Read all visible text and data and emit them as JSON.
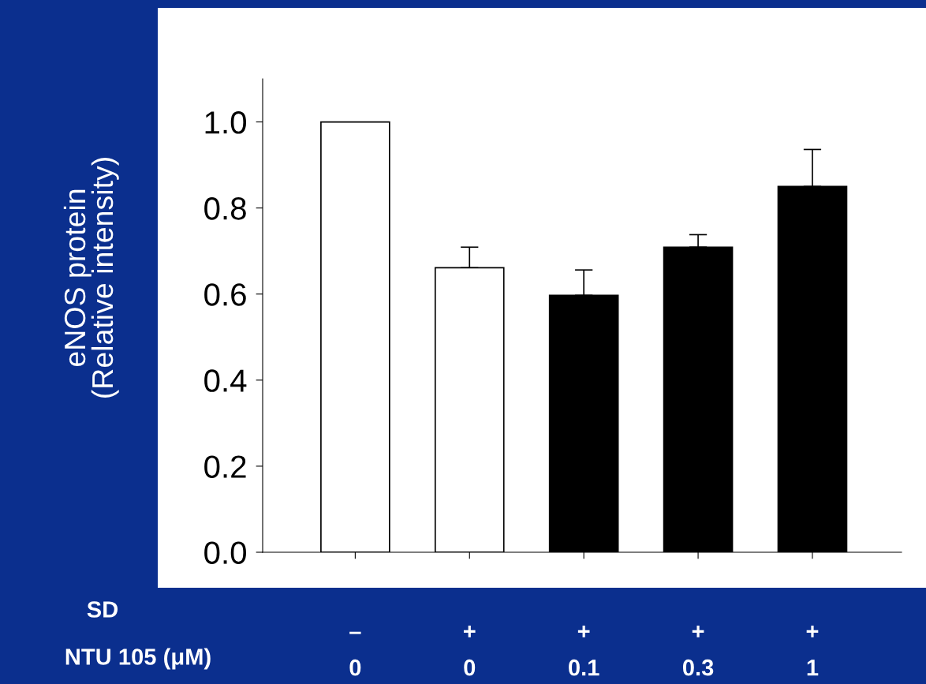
{
  "chart_data": {
    "type": "bar",
    "ylabel": "eNOS protein\n(Relative intensity)",
    "categories": [
      "–\n0",
      "+\n0",
      "+\n0.1",
      "+\n0.3",
      "+\n1"
    ],
    "values": [
      1.0,
      0.661,
      0.597,
      0.709,
      0.85
    ],
    "colors": [
      "#ffffff",
      "#ffffff",
      "#000000",
      "#000000",
      "#000000"
    ],
    "errors": [
      null,
      [
        0.661,
        0.709
      ],
      [
        0.597,
        0.656
      ],
      [
        0.709,
        0.738
      ],
      [
        0.85,
        0.936
      ]
    ],
    "ylim": [
      0,
      1.1
    ],
    "yticks": [
      {
        "value": 0,
        "label": "0.0"
      },
      0.2,
      0.4,
      0.6,
      0.8,
      {
        "value": 1,
        "label": "1.0"
      }
    ],
    "annotations": [
      "SD",
      "NTU 105 (μM)"
    ]
  }
}
